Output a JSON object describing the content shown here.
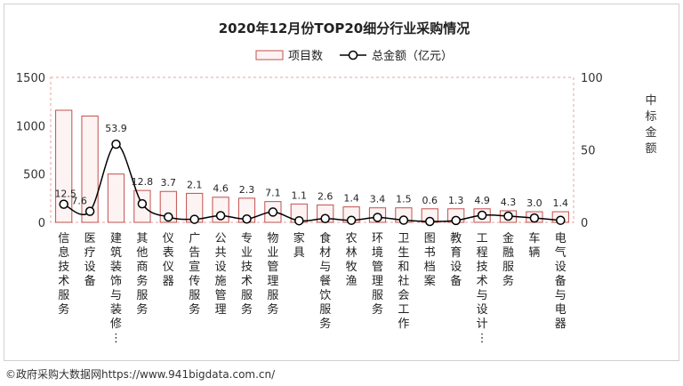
{
  "chart_data": {
    "type": "bar",
    "title": "2020年12月份TOP20细分行业采购情况",
    "categories": [
      "信息技术服务",
      "医疗设备",
      "建筑装饰与装修…",
      "其他商务服务",
      "仪表仪器",
      "广告宣传服务",
      "公共设施管理",
      "专业技术服务",
      "物业管理服务",
      "家具",
      "食材与餐饮服务",
      "农林牧渔",
      "环境管理服务",
      "卫生和社会工作",
      "图书档案",
      "教育设备",
      "工程技术与设计…",
      "金融服务",
      "车辆",
      "电气设备与电器"
    ],
    "series": [
      {
        "name": "项目数",
        "type": "bar",
        "axis": "left",
        "values": [
          1160,
          1100,
          500,
          330,
          320,
          300,
          260,
          250,
          215,
          190,
          180,
          160,
          150,
          150,
          140,
          140,
          140,
          120,
          110,
          110
        ]
      },
      {
        "name": "总金额（亿元）",
        "type": "line",
        "axis": "right",
        "values": [
          12.5,
          7.6,
          53.9,
          12.8,
          3.7,
          2.1,
          4.6,
          2.3,
          7.1,
          1.1,
          2.6,
          1.4,
          3.4,
          1.5,
          0.6,
          1.3,
          4.9,
          4.3,
          3.0,
          1.4
        ],
        "labels": [
          "12.5",
          "7.6",
          "53.9",
          "12.8",
          "3.7",
          "2.1",
          "4.6",
          "2.3",
          "7.1",
          "1.1",
          "2.6",
          "1.4",
          "3.4",
          "1.5",
          "0.6",
          "1.3",
          "4.9",
          "4.3",
          "3.0",
          "1.4"
        ]
      }
    ],
    "ylim_left": [
      0,
      1500
    ],
    "yticks_left": [
      "0",
      "500",
      "1000",
      "1500"
    ],
    "ylim_right": [
      0,
      100
    ],
    "yticks_right": [
      "0",
      "50",
      "100"
    ],
    "ylabel_right": "中标金额",
    "legend_position": "top-center",
    "colors": {
      "bar_stroke": "#c0504d",
      "bar_fill": "#fdf3f3",
      "line": "#000000",
      "marker_fill": "#ffffff"
    }
  },
  "footer": "©政府采购大数据网https://www.941bigdata.com.cn/"
}
